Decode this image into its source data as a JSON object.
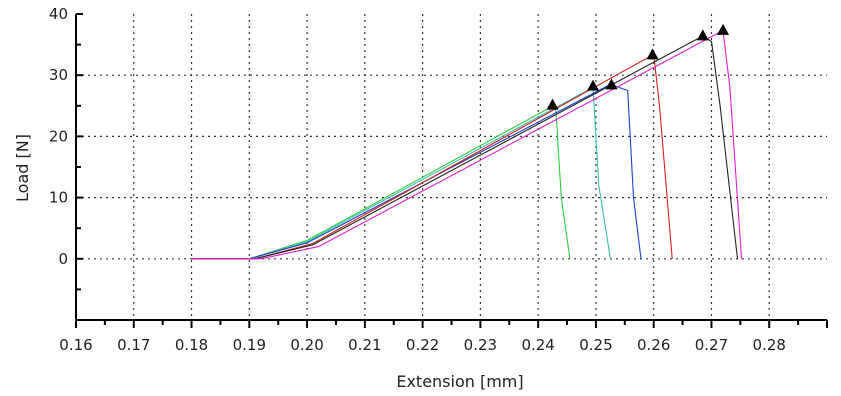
{
  "chart_data": {
    "type": "line",
    "xlabel": "Extension [mm]",
    "ylabel": "Load [N]",
    "xlim": [
      0.16,
      0.29
    ],
    "ylim": [
      -10,
      40
    ],
    "x_ticks": [
      0.16,
      0.17,
      0.18,
      0.19,
      0.2,
      0.21,
      0.22,
      0.23,
      0.24,
      0.25,
      0.26,
      0.27,
      0.28
    ],
    "x_tick_labels": [
      "0.16",
      "0.17",
      "0.18",
      "0.19",
      "0.20",
      "0.21",
      "0.22",
      "0.23",
      "0.24",
      "0.25",
      "0.26",
      "0.27",
      "0.28"
    ],
    "y_ticks": [
      0,
      10,
      20,
      30,
      40
    ],
    "y_tick_labels": [
      "0",
      "10",
      "20",
      "30",
      "40"
    ],
    "grid": true,
    "legend": false,
    "series": [
      {
        "color": "#2ecc40",
        "x": [
          0.18,
          0.19,
          0.2,
          0.243,
          0.244,
          0.2455
        ],
        "y": [
          0,
          0,
          3.0,
          25.2,
          10,
          0
        ],
        "marker": [
          0.2425,
          25.2
        ]
      },
      {
        "color": "#3dbfb0",
        "x": [
          0.18,
          0.19,
          0.2,
          0.2495,
          0.2505,
          0.2525
        ],
        "y": [
          0,
          0,
          2.8,
          28.0,
          12,
          0
        ],
        "marker": [
          0.2495,
          28.3
        ]
      },
      {
        "color": "#1f3fcf",
        "x": [
          0.18,
          0.19,
          0.2,
          0.2525,
          0.2555,
          0.2565,
          0.2578
        ],
        "y": [
          0,
          0,
          2.6,
          28.5,
          27.5,
          10,
          0
        ],
        "marker": [
          0.2527,
          28.5
        ]
      },
      {
        "color": "#d62020",
        "x": [
          0.18,
          0.191,
          0.201,
          0.26,
          0.261,
          0.2632
        ],
        "y": [
          0,
          0,
          2.5,
          33.4,
          25,
          0
        ],
        "marker": [
          0.2598,
          33.4
        ]
      },
      {
        "color": "#222222",
        "x": [
          0.18,
          0.191,
          0.201,
          0.2685,
          0.27,
          0.2715,
          0.2745
        ],
        "y": [
          0,
          0,
          2.3,
          36.4,
          35.5,
          25,
          0
        ],
        "marker": [
          0.2685,
          36.5
        ]
      },
      {
        "color": "#e020d0",
        "x": [
          0.18,
          0.192,
          0.202,
          0.272,
          0.2732,
          0.2752
        ],
        "y": [
          0,
          0,
          2.0,
          37.3,
          28,
          0
        ],
        "marker": [
          0.272,
          37.4
        ]
      }
    ]
  }
}
